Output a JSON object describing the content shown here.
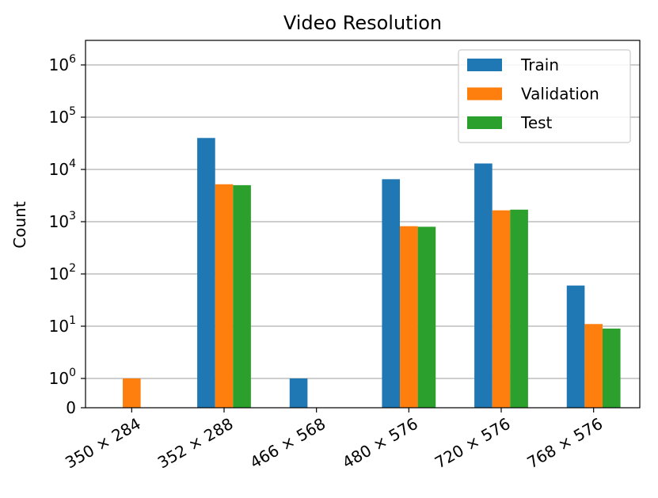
{
  "chart_data": {
    "type": "bar",
    "title": "Video Resolution",
    "xlabel": "",
    "ylabel": "Count",
    "yscale": "symlog",
    "ylim": [
      0,
      1000000
    ],
    "ytick_labels": [
      {
        "base": "0",
        "exp": ""
      },
      {
        "base": "10",
        "exp": "0"
      },
      {
        "base": "10",
        "exp": "1"
      },
      {
        "base": "10",
        "exp": "2"
      },
      {
        "base": "10",
        "exp": "3"
      },
      {
        "base": "10",
        "exp": "4"
      },
      {
        "base": "10",
        "exp": "5"
      },
      {
        "base": "10",
        "exp": "6"
      }
    ],
    "grid": "y-major",
    "legend_position": "top-right",
    "categories": [
      "350 × 284",
      "352 × 288",
      "466 × 568",
      "480 × 576",
      "720 × 576",
      "768 × 576"
    ],
    "series": [
      {
        "name": "Train",
        "color": "#1f77b4",
        "values": [
          0,
          40000,
          1,
          6500,
          13000,
          60
        ]
      },
      {
        "name": "Validation",
        "color": "#ff7f0e",
        "values": [
          1,
          5200,
          0,
          820,
          1650,
          11
        ]
      },
      {
        "name": "Test",
        "color": "#2ca02c",
        "values": [
          0,
          5000,
          0,
          800,
          1700,
          9
        ]
      }
    ]
  }
}
